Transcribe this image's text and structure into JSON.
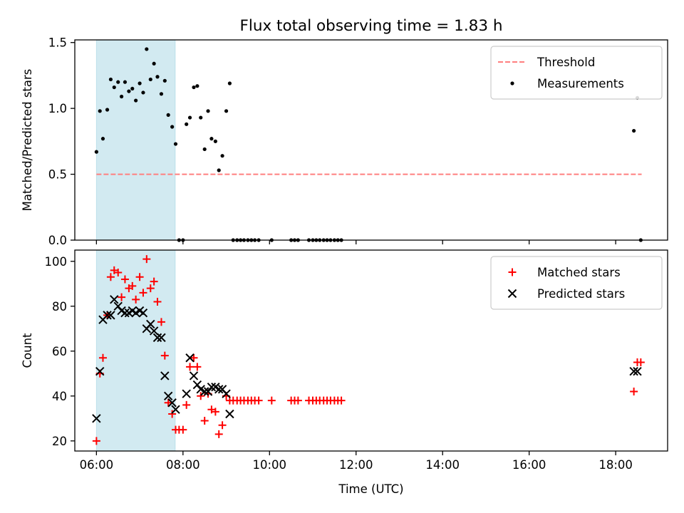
{
  "title": "Flux total observing time = 1.83 h",
  "colors": {
    "threshold": "#ff7f7f",
    "measurement": "#000000",
    "matched": "#ff0000",
    "predicted": "#000000",
    "span": "#add8e6"
  },
  "chart_data": [
    {
      "type": "scatter",
      "panel": "top",
      "xlabel": "",
      "ylabel": "Matched/Predicted stars",
      "xlim": [
        5.5,
        19.2
      ],
      "ylim": [
        0,
        1.52
      ],
      "yticks": [
        0,
        0.5,
        1.0,
        1.5
      ],
      "ytick_labels": [
        "0.0",
        "0.5",
        "1.0",
        "1.5"
      ],
      "xticks": [
        6,
        8,
        10,
        12,
        14,
        16,
        18
      ],
      "xtick_labels": [],
      "grid": false,
      "legend_placement": "top-right",
      "shaded_span": [
        6.0,
        7.82
      ],
      "threshold": {
        "name": "Threshold",
        "y": 0.5,
        "x": [
          6.0,
          18.6
        ]
      },
      "series": [
        {
          "name": "Measurements",
          "marker": "dot",
          "points": [
            [
              6.0,
              0.67
            ],
            [
              6.08,
              0.98
            ],
            [
              6.15,
              0.77
            ],
            [
              6.25,
              0.99
            ],
            [
              6.33,
              1.22
            ],
            [
              6.41,
              1.16
            ],
            [
              6.5,
              1.2
            ],
            [
              6.58,
              1.09
            ],
            [
              6.66,
              1.2
            ],
            [
              6.75,
              1.13
            ],
            [
              6.83,
              1.15
            ],
            [
              6.91,
              1.06
            ],
            [
              7.0,
              1.19
            ],
            [
              7.08,
              1.12
            ],
            [
              7.16,
              1.45
            ],
            [
              7.25,
              1.22
            ],
            [
              7.33,
              1.34
            ],
            [
              7.41,
              1.24
            ],
            [
              7.5,
              1.11
            ],
            [
              7.58,
              1.21
            ],
            [
              7.66,
              0.95
            ],
            [
              7.75,
              0.86
            ],
            [
              7.83,
              0.73
            ],
            [
              7.91,
              0.0
            ],
            [
              8.0,
              0.0
            ],
            [
              8.08,
              0.88
            ],
            [
              8.16,
              0.93
            ],
            [
              8.25,
              1.16
            ],
            [
              8.33,
              1.17
            ],
            [
              8.41,
              0.93
            ],
            [
              8.5,
              0.69
            ],
            [
              8.58,
              0.98
            ],
            [
              8.66,
              0.77
            ],
            [
              8.75,
              0.75
            ],
            [
              8.83,
              0.53
            ],
            [
              8.91,
              0.64
            ],
            [
              9.0,
              0.98
            ],
            [
              9.08,
              1.19
            ],
            [
              9.16,
              0.0
            ],
            [
              9.25,
              0.0
            ],
            [
              9.33,
              0.0
            ],
            [
              9.41,
              0.0
            ],
            [
              9.5,
              0.0
            ],
            [
              9.58,
              0.0
            ],
            [
              9.66,
              0.0
            ],
            [
              9.75,
              0.0
            ],
            [
              10.05,
              0.0
            ],
            [
              10.5,
              0.0
            ],
            [
              10.58,
              0.0
            ],
            [
              10.66,
              0.0
            ],
            [
              10.91,
              0.0
            ],
            [
              11.0,
              0.0
            ],
            [
              11.08,
              0.0
            ],
            [
              11.16,
              0.0
            ],
            [
              11.25,
              0.0
            ],
            [
              11.33,
              0.0
            ],
            [
              11.41,
              0.0
            ],
            [
              11.5,
              0.0
            ],
            [
              11.58,
              0.0
            ],
            [
              11.66,
              0.0
            ],
            [
              18.42,
              0.83
            ],
            [
              18.5,
              1.08
            ],
            [
              18.58,
              0.0
            ]
          ]
        }
      ]
    },
    {
      "type": "scatter",
      "panel": "bottom",
      "xlabel": "Time (UTC)",
      "ylabel": "Count",
      "xlim": [
        5.5,
        19.2
      ],
      "ylim": [
        15.5,
        105
      ],
      "yticks": [
        20,
        40,
        60,
        80,
        100
      ],
      "ytick_labels": [
        "20",
        "40",
        "60",
        "80",
        "100"
      ],
      "xticks": [
        6,
        8,
        10,
        12,
        14,
        16,
        18
      ],
      "xtick_labels": [
        "06:00",
        "08:00",
        "10:00",
        "12:00",
        "14:00",
        "16:00",
        "18:00"
      ],
      "grid": false,
      "legend_placement": "top-right",
      "shaded_span": [
        6.0,
        7.82
      ],
      "series": [
        {
          "name": "Matched stars",
          "marker": "plus",
          "points": [
            [
              6.0,
              20
            ],
            [
              6.08,
              50
            ],
            [
              6.15,
              57
            ],
            [
              6.25,
              76
            ],
            [
              6.33,
              93
            ],
            [
              6.41,
              96
            ],
            [
              6.5,
              95
            ],
            [
              6.58,
              84
            ],
            [
              6.66,
              92
            ],
            [
              6.75,
              88
            ],
            [
              6.83,
              89
            ],
            [
              6.91,
              83
            ],
            [
              7.0,
              93
            ],
            [
              7.08,
              86
            ],
            [
              7.16,
              101
            ],
            [
              7.25,
              88
            ],
            [
              7.33,
              91
            ],
            [
              7.41,
              82
            ],
            [
              7.5,
              73
            ],
            [
              7.58,
              58
            ],
            [
              7.66,
              37
            ],
            [
              7.75,
              32
            ],
            [
              7.83,
              25
            ],
            [
              7.91,
              25
            ],
            [
              8.0,
              25
            ],
            [
              8.08,
              36
            ],
            [
              8.16,
              53
            ],
            [
              8.25,
              57
            ],
            [
              8.33,
              53
            ],
            [
              8.41,
              40
            ],
            [
              8.5,
              29
            ],
            [
              8.58,
              41
            ],
            [
              8.66,
              34
            ],
            [
              8.75,
              33
            ],
            [
              8.83,
              23
            ],
            [
              8.91,
              27
            ],
            [
              9.0,
              40
            ],
            [
              9.08,
              38
            ],
            [
              9.16,
              38
            ],
            [
              9.25,
              38
            ],
            [
              9.33,
              38
            ],
            [
              9.41,
              38
            ],
            [
              9.5,
              38
            ],
            [
              9.58,
              38
            ],
            [
              9.66,
              38
            ],
            [
              9.75,
              38
            ],
            [
              10.05,
              38
            ],
            [
              10.5,
              38
            ],
            [
              10.58,
              38
            ],
            [
              10.66,
              38
            ],
            [
              10.91,
              38
            ],
            [
              11.0,
              38
            ],
            [
              11.08,
              38
            ],
            [
              11.16,
              38
            ],
            [
              11.25,
              38
            ],
            [
              11.33,
              38
            ],
            [
              11.41,
              38
            ],
            [
              11.5,
              38
            ],
            [
              11.58,
              38
            ],
            [
              11.66,
              38
            ],
            [
              18.42,
              42
            ],
            [
              18.5,
              55
            ],
            [
              18.58,
              55
            ]
          ]
        },
        {
          "name": "Predicted stars",
          "marker": "x",
          "points": [
            [
              6.0,
              30
            ],
            [
              6.08,
              51
            ],
            [
              6.15,
              74
            ],
            [
              6.25,
              76
            ],
            [
              6.33,
              76
            ],
            [
              6.41,
              83
            ],
            [
              6.5,
              80
            ],
            [
              6.58,
              78
            ],
            [
              6.66,
              77
            ],
            [
              6.75,
              77
            ],
            [
              6.83,
              78
            ],
            [
              6.91,
              77
            ],
            [
              7.0,
              78
            ],
            [
              7.08,
              77
            ],
            [
              7.16,
              70
            ],
            [
              7.25,
              72
            ],
            [
              7.33,
              69
            ],
            [
              7.41,
              66
            ],
            [
              7.5,
              66
            ],
            [
              7.58,
              49
            ],
            [
              7.66,
              40
            ],
            [
              7.75,
              37
            ],
            [
              7.83,
              34
            ],
            [
              8.08,
              41
            ],
            [
              8.16,
              57
            ],
            [
              8.25,
              49
            ],
            [
              8.33,
              45
            ],
            [
              8.41,
              43
            ],
            [
              8.5,
              42
            ],
            [
              8.58,
              42
            ],
            [
              8.66,
              44
            ],
            [
              8.75,
              44
            ],
            [
              8.83,
              43
            ],
            [
              8.91,
              43
            ],
            [
              9.0,
              41
            ],
            [
              9.08,
              32
            ],
            [
              18.42,
              51
            ],
            [
              18.5,
              51
            ]
          ]
        }
      ]
    }
  ]
}
